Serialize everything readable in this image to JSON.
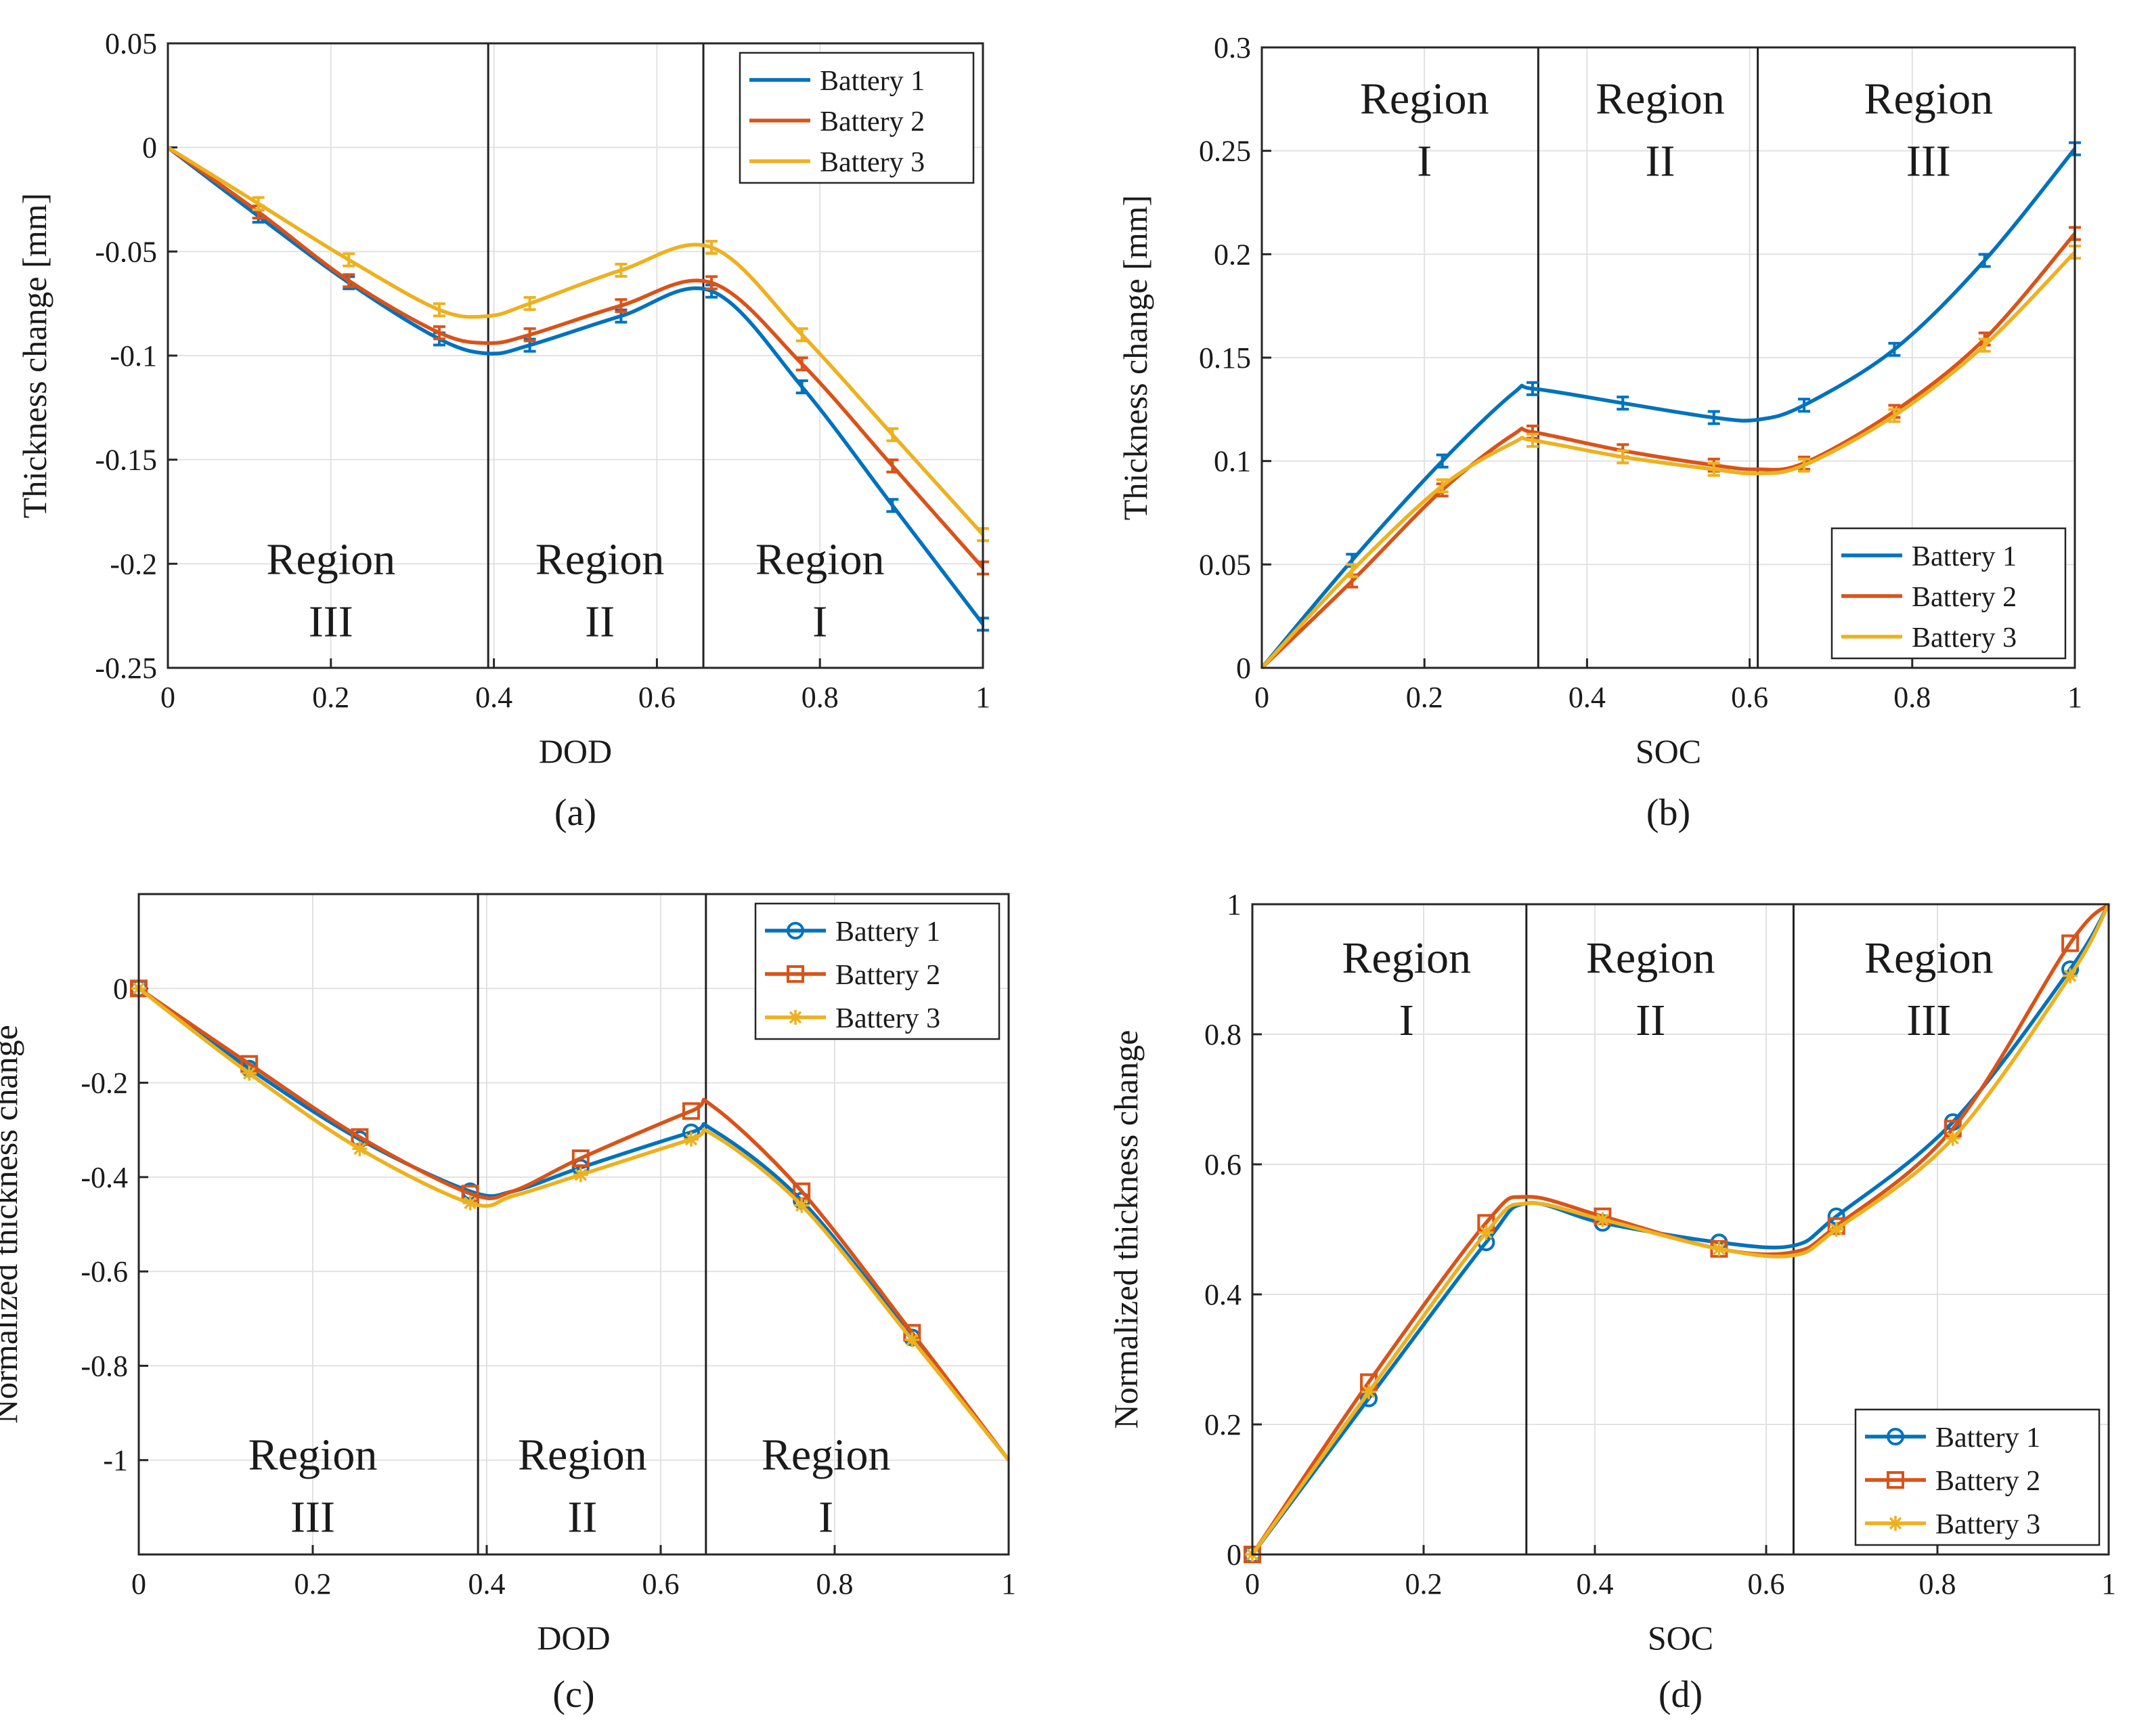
{
  "colors": {
    "battery1": "#0072BD",
    "battery2": "#D95319",
    "battery3": "#EDB120"
  },
  "chart_data": [
    {
      "type": "line",
      "id": "a",
      "caption": "(a)",
      "xlabel": "DOD",
      "ylabel": "Thickness change [mm]",
      "xlim": [
        0,
        1
      ],
      "ylim": [
        -0.25,
        0.05
      ],
      "xticks": [
        0,
        0.2,
        0.4,
        0.6,
        0.8,
        1
      ],
      "xtick_labels": [
        "0",
        "0.2",
        "0.4",
        "0.6",
        "0.8",
        "1"
      ],
      "yticks": [
        -0.25,
        -0.2,
        -0.15,
        -0.1,
        -0.05,
        0,
        0.05
      ],
      "ytick_labels": [
        "-0.25",
        "-0.2",
        "-0.15",
        "-0.1",
        "-0.05",
        "0",
        "0.05"
      ],
      "grid": true,
      "legend_position": "top-right",
      "marker_style": "errorbar",
      "dividers": [
        0.393,
        0.657
      ],
      "region_y": -0.205,
      "regions": [
        {
          "line1": "Region",
          "line2": "III",
          "x": 0.2
        },
        {
          "line1": "Region",
          "line2": "II",
          "x": 0.53
        },
        {
          "line1": "Region",
          "line2": "I",
          "x": 0.8
        }
      ],
      "series": [
        {
          "name": "Battery 1",
          "color_key": "battery1",
          "x": [
            0,
            0.111,
            0.222,
            0.333,
            0.393,
            0.444,
            0.556,
            0.667,
            0.778,
            0.889,
            1
          ],
          "y": [
            0,
            -0.033,
            -0.065,
            -0.092,
            -0.099,
            -0.095,
            -0.081,
            -0.069,
            -0.115,
            -0.172,
            -0.229
          ],
          "marker_idx": [
            1,
            2,
            3,
            5,
            6,
            7,
            8,
            9,
            10
          ]
        },
        {
          "name": "Battery 2",
          "color_key": "battery2",
          "x": [
            0,
            0.111,
            0.222,
            0.333,
            0.393,
            0.444,
            0.556,
            0.667,
            0.778,
            0.889,
            1
          ],
          "y": [
            0,
            -0.031,
            -0.064,
            -0.089,
            -0.094,
            -0.09,
            -0.076,
            -0.065,
            -0.104,
            -0.153,
            -0.202
          ],
          "marker_idx": [
            1,
            2,
            3,
            5,
            6,
            7,
            8,
            9,
            10
          ]
        },
        {
          "name": "Battery 3",
          "color_key": "battery3",
          "x": [
            0,
            0.111,
            0.222,
            0.333,
            0.393,
            0.444,
            0.556,
            0.667,
            0.778,
            0.889,
            1
          ],
          "y": [
            0,
            -0.027,
            -0.054,
            -0.078,
            -0.081,
            -0.075,
            -0.059,
            -0.048,
            -0.09,
            -0.138,
            -0.186
          ],
          "marker_idx": [
            1,
            2,
            3,
            5,
            6,
            7,
            8,
            9,
            10
          ]
        }
      ]
    },
    {
      "type": "line",
      "id": "b",
      "caption": "(b)",
      "xlabel": "SOC",
      "ylabel": "Thickness change [mm]",
      "xlim": [
        0,
        1
      ],
      "ylim": [
        0,
        0.3
      ],
      "xticks": [
        0,
        0.2,
        0.4,
        0.6,
        0.8,
        1
      ],
      "xtick_labels": [
        "0",
        "0.2",
        "0.4",
        "0.6",
        "0.8",
        "1"
      ],
      "yticks": [
        0,
        0.05,
        0.1,
        0.15,
        0.2,
        0.25,
        0.3
      ],
      "ytick_labels": [
        "0",
        "0.05",
        "0.1",
        "0.15",
        "0.2",
        "0.25",
        "0.3"
      ],
      "grid": true,
      "legend_position": "bottom-right",
      "marker_style": "errorbar",
      "dividers": [
        0.34,
        0.61
      ],
      "region_y": 0.268,
      "regions": [
        {
          "line1": "Region",
          "line2": "I",
          "x": 0.2
        },
        {
          "line1": "Region",
          "line2": "II",
          "x": 0.49
        },
        {
          "line1": "Region",
          "line2": "III",
          "x": 0.82
        }
      ],
      "series": [
        {
          "name": "Battery 1",
          "color_key": "battery1",
          "x": [
            0,
            0.111,
            0.222,
            0.31,
            0.333,
            0.444,
            0.556,
            0.61,
            0.667,
            0.778,
            0.889,
            1
          ],
          "y": [
            0,
            0.052,
            0.1,
            0.133,
            0.135,
            0.128,
            0.121,
            0.12,
            0.127,
            0.154,
            0.197,
            0.251
          ],
          "marker_idx": [
            1,
            2,
            4,
            5,
            6,
            8,
            9,
            10,
            11
          ]
        },
        {
          "name": "Battery 2",
          "color_key": "battery2",
          "x": [
            0,
            0.111,
            0.222,
            0.31,
            0.333,
            0.444,
            0.556,
            0.61,
            0.667,
            0.778,
            0.889,
            1
          ],
          "y": [
            0,
            0.042,
            0.086,
            0.113,
            0.114,
            0.105,
            0.098,
            0.096,
            0.099,
            0.124,
            0.159,
            0.21
          ],
          "marker_idx": [
            1,
            2,
            4,
            5,
            6,
            8,
            9,
            10,
            11
          ]
        },
        {
          "name": "Battery 3",
          "color_key": "battery3",
          "x": [
            0,
            0.111,
            0.222,
            0.31,
            0.333,
            0.444,
            0.556,
            0.61,
            0.667,
            0.778,
            0.889,
            1
          ],
          "y": [
            0,
            0.047,
            0.088,
            0.109,
            0.11,
            0.102,
            0.096,
            0.094,
            0.098,
            0.122,
            0.156,
            0.201
          ],
          "marker_idx": [
            1,
            2,
            4,
            5,
            6,
            8,
            9,
            10,
            11
          ]
        }
      ]
    },
    {
      "type": "line",
      "id": "c",
      "caption": "(c)",
      "xlabel": "DOD",
      "ylabel": "Normalized thickness change",
      "xlim": [
        0,
        1
      ],
      "ylim": [
        -1.2,
        0.2
      ],
      "xticks": [
        0,
        0.2,
        0.4,
        0.6,
        0.8,
        1
      ],
      "xtick_labels": [
        "0",
        "0.2",
        "0.4",
        "0.6",
        "0.8",
        "1"
      ],
      "yticks": [
        -1,
        -0.8,
        -0.6,
        -0.4,
        -0.2,
        0
      ],
      "ytick_labels": [
        "-1",
        "-0.8",
        "-0.6",
        "-0.4",
        "-0.2",
        "0"
      ],
      "grid": true,
      "legend_position": "top-right",
      "marker_style": "symbols",
      "dividers": [
        0.39,
        0.652
      ],
      "region_y": -1.02,
      "regions": [
        {
          "line1": "Region",
          "line2": "III",
          "x": 0.2
        },
        {
          "line1": "Region",
          "line2": "II",
          "x": 0.51
        },
        {
          "line1": "Region",
          "line2": "I",
          "x": 0.79
        }
      ],
      "series": [
        {
          "name": "Battery 1",
          "marker": "circle",
          "color_key": "battery1",
          "x": [
            0,
            0.127,
            0.254,
            0.381,
            0.43,
            0.508,
            0.635,
            0.66,
            0.762,
            0.889,
            1
          ],
          "y": [
            0,
            -0.17,
            -0.32,
            -0.43,
            -0.43,
            -0.38,
            -0.305,
            -0.3,
            -0.45,
            -0.74,
            -1.0
          ],
          "marker_idx": [
            0,
            1,
            2,
            3,
            5,
            6,
            8,
            9
          ]
        },
        {
          "name": "Battery 2",
          "marker": "square",
          "color_key": "battery2",
          "x": [
            0,
            0.127,
            0.254,
            0.381,
            0.43,
            0.508,
            0.635,
            0.66,
            0.762,
            0.889,
            1
          ],
          "y": [
            0,
            -0.16,
            -0.315,
            -0.435,
            -0.43,
            -0.36,
            -0.26,
            -0.25,
            -0.43,
            -0.73,
            -1.0
          ],
          "marker_idx": [
            0,
            1,
            2,
            3,
            5,
            6,
            8,
            9
          ]
        },
        {
          "name": "Battery 3",
          "marker": "asterisk",
          "color_key": "battery3",
          "x": [
            0,
            0.127,
            0.254,
            0.381,
            0.43,
            0.508,
            0.635,
            0.66,
            0.762,
            0.889,
            1
          ],
          "y": [
            0,
            -0.18,
            -0.34,
            -0.455,
            -0.44,
            -0.395,
            -0.32,
            -0.31,
            -0.46,
            -0.745,
            -1.0
          ],
          "marker_idx": [
            0,
            1,
            2,
            3,
            5,
            6,
            8,
            9
          ]
        }
      ]
    },
    {
      "type": "line",
      "id": "d",
      "caption": "(d)",
      "xlabel": "SOC",
      "ylabel": "Normalized thickness change",
      "xlim": [
        0,
        1
      ],
      "ylim": [
        0,
        1
      ],
      "xticks": [
        0,
        0.2,
        0.4,
        0.6,
        0.8,
        1
      ],
      "xtick_labels": [
        "0",
        "0.2",
        "0.4",
        "0.6",
        "0.8",
        "1"
      ],
      "yticks": [
        0,
        0.2,
        0.4,
        0.6,
        0.8,
        1
      ],
      "ytick_labels": [
        "0",
        "0.2",
        "0.4",
        "0.6",
        "0.8",
        "1"
      ],
      "grid": true,
      "legend_position": "bottom-right",
      "marker_style": "symbols",
      "dividers": [
        0.32,
        0.632
      ],
      "region_y": 0.895,
      "regions": [
        {
          "line1": "Region",
          "line2": "I",
          "x": 0.18
        },
        {
          "line1": "Region",
          "line2": "II",
          "x": 0.465
        },
        {
          "line1": "Region",
          "line2": "III",
          "x": 0.79
        }
      ],
      "series": [
        {
          "name": "Battery 1",
          "marker": "circle",
          "color_key": "battery1",
          "x": [
            0,
            0.136,
            0.273,
            0.32,
            0.409,
            0.545,
            0.632,
            0.682,
            0.818,
            0.955,
            1
          ],
          "y": [
            0,
            0.24,
            0.48,
            0.54,
            0.51,
            0.48,
            0.475,
            0.52,
            0.665,
            0.9,
            1.0
          ],
          "marker_idx": [
            0,
            1,
            2,
            4,
            5,
            7,
            8,
            9
          ]
        },
        {
          "name": "Battery 2",
          "marker": "square",
          "color_key": "battery2",
          "x": [
            0,
            0.136,
            0.273,
            0.32,
            0.409,
            0.545,
            0.632,
            0.682,
            0.818,
            0.955,
            1
          ],
          "y": [
            0,
            0.265,
            0.51,
            0.55,
            0.52,
            0.47,
            0.465,
            0.505,
            0.655,
            0.94,
            1.0
          ],
          "marker_idx": [
            0,
            1,
            2,
            4,
            5,
            7,
            8,
            9
          ]
        },
        {
          "name": "Battery 3",
          "marker": "asterisk",
          "color_key": "battery3",
          "x": [
            0,
            0.136,
            0.273,
            0.32,
            0.409,
            0.545,
            0.632,
            0.682,
            0.818,
            0.955,
            1
          ],
          "y": [
            0,
            0.25,
            0.495,
            0.54,
            0.515,
            0.47,
            0.46,
            0.5,
            0.64,
            0.89,
            1.0
          ],
          "marker_idx": [
            0,
            1,
            2,
            4,
            5,
            7,
            8,
            9
          ]
        }
      ]
    }
  ]
}
